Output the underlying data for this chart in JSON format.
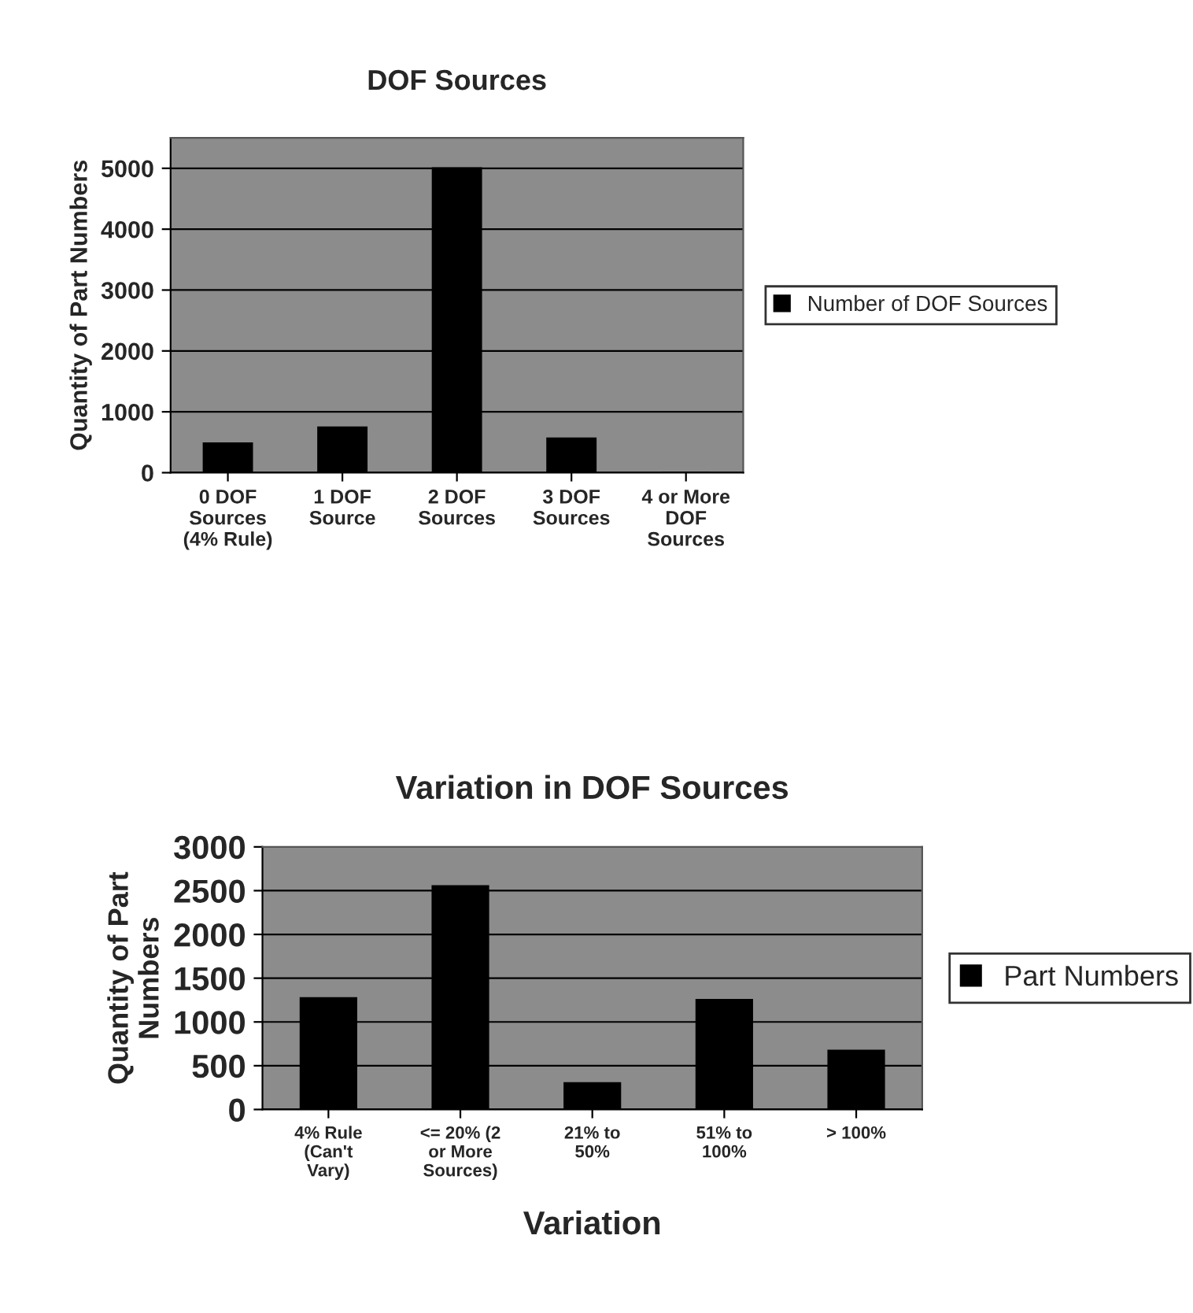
{
  "chart_data": [
    {
      "type": "bar",
      "title": "DOF Sources",
      "ylabel": "Quantity of Part Numbers",
      "categories": [
        "0 DOF\nSources\n(4% Rule)",
        "1 DOF\nSource",
        "2 DOF\nSources",
        "3 DOF\nSources",
        "4 or More\nDOF\nSources"
      ],
      "series": [
        {
          "name": "Number of DOF Sources",
          "color": "#000000",
          "values": [
            480,
            740,
            5000,
            560,
            0
          ]
        }
      ],
      "ylim": [
        0,
        5500
      ],
      "yticks": [
        0,
        1000,
        2000,
        3000,
        4000,
        5000
      ],
      "grid": "y",
      "legend": "right"
    },
    {
      "type": "bar",
      "title": "Variation in DOF Sources",
      "xlabel": "Variation",
      "ylabel": "Quantity of Part\nNumbers",
      "categories": [
        "4% Rule\n(Can't\nVary)",
        "<= 20% (2\nor More\nSources)",
        "21% to\n50%",
        "51% to\n100%",
        "> 100%"
      ],
      "series": [
        {
          "name": "Part Numbers",
          "color": "#000000",
          "values": [
            1270,
            2550,
            300,
            1250,
            670
          ]
        }
      ],
      "ylim": [
        0,
        3000
      ],
      "yticks": [
        0,
        500,
        1000,
        1500,
        2000,
        2500,
        3000
      ],
      "grid": "y",
      "legend": "right"
    }
  ]
}
